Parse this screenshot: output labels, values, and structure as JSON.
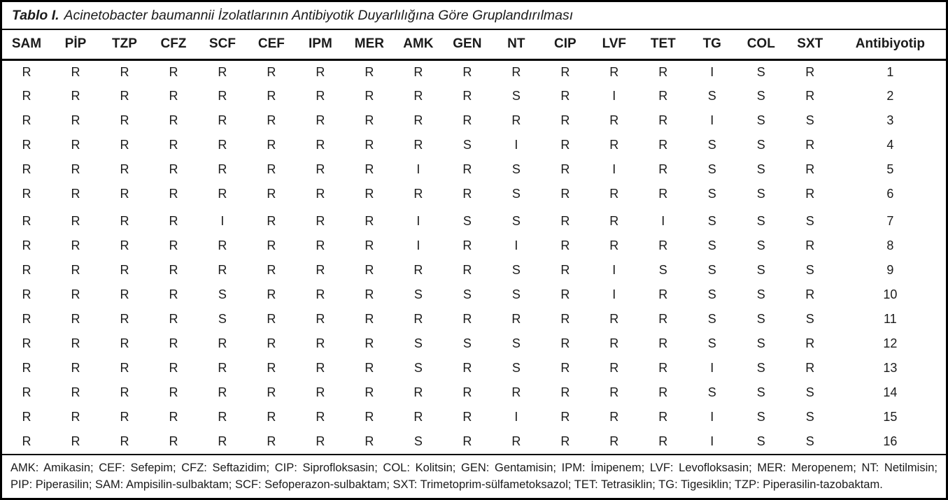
{
  "table": {
    "title_prefix": "Tablo I.",
    "title_text": "Acinetobacter baumannii İzolatlarının Antibiyotik Duyarlılığına Göre Gruplandırılması",
    "columns": [
      "SAM",
      "PİP",
      "TZP",
      "CFZ",
      "SCF",
      "CEF",
      "IPM",
      "MER",
      "AMK",
      "GEN",
      "NT",
      "CIP",
      "LVF",
      "TET",
      "TG",
      "COL",
      "SXT",
      "Antibiyotip"
    ],
    "rows": [
      [
        "R",
        "R",
        "R",
        "R",
        "R",
        "R",
        "R",
        "R",
        "R",
        "R",
        "R",
        "R",
        "R",
        "R",
        "I",
        "S",
        "R",
        "1"
      ],
      [
        "R",
        "R",
        "R",
        "R",
        "R",
        "R",
        "R",
        "R",
        "R",
        "R",
        "S",
        "R",
        "I",
        "R",
        "S",
        "S",
        "R",
        "2"
      ],
      [
        "R",
        "R",
        "R",
        "R",
        "R",
        "R",
        "R",
        "R",
        "R",
        "R",
        "R",
        "R",
        "R",
        "R",
        "I",
        "S",
        "S",
        "3"
      ],
      [
        "R",
        "R",
        "R",
        "R",
        "R",
        "R",
        "R",
        "R",
        "R",
        "S",
        "I",
        "R",
        "R",
        "R",
        "S",
        "S",
        "R",
        "4"
      ],
      [
        "R",
        "R",
        "R",
        "R",
        "R",
        "R",
        "R",
        "R",
        "I",
        "R",
        "S",
        "R",
        "I",
        "R",
        "S",
        "S",
        "R",
        "5"
      ],
      [
        "R",
        "R",
        "R",
        "R",
        "R",
        "R",
        "R",
        "R",
        "R",
        "R",
        "S",
        "R",
        "R",
        "R",
        "S",
        "S",
        "R",
        "6"
      ],
      [
        "R",
        "R",
        "R",
        "R",
        "I",
        "R",
        "R",
        "R",
        "I",
        "S",
        "S",
        "R",
        "R",
        "I",
        "S",
        "S",
        "S",
        "7"
      ],
      [
        "R",
        "R",
        "R",
        "R",
        "R",
        "R",
        "R",
        "R",
        "I",
        "R",
        "I",
        "R",
        "R",
        "R",
        "S",
        "S",
        "R",
        "8"
      ],
      [
        "R",
        "R",
        "R",
        "R",
        "R",
        "R",
        "R",
        "R",
        "R",
        "R",
        "S",
        "R",
        "I",
        "S",
        "S",
        "S",
        "S",
        "9"
      ],
      [
        "R",
        "R",
        "R",
        "R",
        "S",
        "R",
        "R",
        "R",
        "S",
        "S",
        "S",
        "R",
        "I",
        "R",
        "S",
        "S",
        "R",
        "10"
      ],
      [
        "R",
        "R",
        "R",
        "R",
        "S",
        "R",
        "R",
        "R",
        "R",
        "R",
        "R",
        "R",
        "R",
        "R",
        "S",
        "S",
        "S",
        "11"
      ],
      [
        "R",
        "R",
        "R",
        "R",
        "R",
        "R",
        "R",
        "R",
        "S",
        "S",
        "S",
        "R",
        "R",
        "R",
        "S",
        "S",
        "R",
        "12"
      ],
      [
        "R",
        "R",
        "R",
        "R",
        "R",
        "R",
        "R",
        "R",
        "S",
        "R",
        "S",
        "R",
        "R",
        "R",
        "I",
        "S",
        "R",
        "13"
      ],
      [
        "R",
        "R",
        "R",
        "R",
        "R",
        "R",
        "R",
        "R",
        "R",
        "R",
        "R",
        "R",
        "R",
        "R",
        "S",
        "S",
        "S",
        "14"
      ],
      [
        "R",
        "R",
        "R",
        "R",
        "R",
        "R",
        "R",
        "R",
        "R",
        "R",
        "I",
        "R",
        "R",
        "R",
        "I",
        "S",
        "S",
        "15"
      ],
      [
        "R",
        "R",
        "R",
        "R",
        "R",
        "R",
        "R",
        "R",
        "S",
        "R",
        "R",
        "R",
        "R",
        "R",
        "I",
        "S",
        "S",
        "16"
      ]
    ],
    "footnote_line1": "AMK: Amikasin; CEF: Sefepim; CFZ: Seftazidim; CIP: Siprofloksasin; COL: Kolitsin; GEN: Gentamisin; IPM: İmipenem; LVF: Levofloksasin; MER: Meropenem; NT: Netilmisin;",
    "footnote_line2": "PIP: Piperasilin; SAM: Ampisilin-sulbaktam; SCF: Sefoperazon-sulbaktam; SXT: Trimetoprim-sülfametoksazol; TET: Tetrasiklin; TG: Tigesiklin; TZP: Piperasilin-tazobaktam.",
    "text_color": "#1b1b1b",
    "border_color": "#000000"
  },
  "chart_data": {
    "type": "table",
    "title": "Tablo I. Acinetobacter baumannii İzolatlarının Antibiyotik Duyarlılığına Göre Gruplandırılması",
    "columns": [
      "SAM",
      "PİP",
      "TZP",
      "CFZ",
      "SCF",
      "CEF",
      "IPM",
      "MER",
      "AMK",
      "GEN",
      "NT",
      "CIP",
      "LVF",
      "TET",
      "TG",
      "COL",
      "SXT",
      "Antibiyotip"
    ],
    "rows": [
      [
        "R",
        "R",
        "R",
        "R",
        "R",
        "R",
        "R",
        "R",
        "R",
        "R",
        "R",
        "R",
        "R",
        "R",
        "I",
        "S",
        "R",
        "1"
      ],
      [
        "R",
        "R",
        "R",
        "R",
        "R",
        "R",
        "R",
        "R",
        "R",
        "R",
        "S",
        "R",
        "I",
        "R",
        "S",
        "S",
        "R",
        "2"
      ],
      [
        "R",
        "R",
        "R",
        "R",
        "R",
        "R",
        "R",
        "R",
        "R",
        "R",
        "R",
        "R",
        "R",
        "R",
        "I",
        "S",
        "S",
        "3"
      ],
      [
        "R",
        "R",
        "R",
        "R",
        "R",
        "R",
        "R",
        "R",
        "R",
        "S",
        "I",
        "R",
        "R",
        "R",
        "S",
        "S",
        "R",
        "4"
      ],
      [
        "R",
        "R",
        "R",
        "R",
        "R",
        "R",
        "R",
        "R",
        "I",
        "R",
        "S",
        "R",
        "I",
        "R",
        "S",
        "S",
        "R",
        "5"
      ],
      [
        "R",
        "R",
        "R",
        "R",
        "R",
        "R",
        "R",
        "R",
        "R",
        "R",
        "S",
        "R",
        "R",
        "R",
        "S",
        "S",
        "R",
        "6"
      ],
      [
        "R",
        "R",
        "R",
        "R",
        "I",
        "R",
        "R",
        "R",
        "I",
        "S",
        "S",
        "R",
        "R",
        "I",
        "S",
        "S",
        "S",
        "7"
      ],
      [
        "R",
        "R",
        "R",
        "R",
        "R",
        "R",
        "R",
        "R",
        "I",
        "R",
        "I",
        "R",
        "R",
        "R",
        "S",
        "S",
        "R",
        "8"
      ],
      [
        "R",
        "R",
        "R",
        "R",
        "R",
        "R",
        "R",
        "R",
        "R",
        "R",
        "S",
        "R",
        "I",
        "S",
        "S",
        "S",
        "S",
        "9"
      ],
      [
        "R",
        "R",
        "R",
        "R",
        "S",
        "R",
        "R",
        "R",
        "S",
        "S",
        "S",
        "R",
        "I",
        "R",
        "S",
        "S",
        "R",
        "10"
      ],
      [
        "R",
        "R",
        "R",
        "R",
        "S",
        "R",
        "R",
        "R",
        "R",
        "R",
        "R",
        "R",
        "R",
        "R",
        "S",
        "S",
        "S",
        "11"
      ],
      [
        "R",
        "R",
        "R",
        "R",
        "R",
        "R",
        "R",
        "R",
        "S",
        "S",
        "S",
        "R",
        "R",
        "R",
        "S",
        "S",
        "R",
        "12"
      ],
      [
        "R",
        "R",
        "R",
        "R",
        "R",
        "R",
        "R",
        "R",
        "S",
        "R",
        "S",
        "R",
        "R",
        "R",
        "I",
        "S",
        "R",
        "13"
      ],
      [
        "R",
        "R",
        "R",
        "R",
        "R",
        "R",
        "R",
        "R",
        "R",
        "R",
        "R",
        "R",
        "R",
        "R",
        "S",
        "S",
        "S",
        "14"
      ],
      [
        "R",
        "R",
        "R",
        "R",
        "R",
        "R",
        "R",
        "R",
        "R",
        "R",
        "I",
        "R",
        "R",
        "R",
        "I",
        "S",
        "S",
        "15"
      ],
      [
        "R",
        "R",
        "R",
        "R",
        "R",
        "R",
        "R",
        "R",
        "S",
        "R",
        "R",
        "R",
        "R",
        "R",
        "I",
        "S",
        "S",
        "16"
      ]
    ]
  }
}
